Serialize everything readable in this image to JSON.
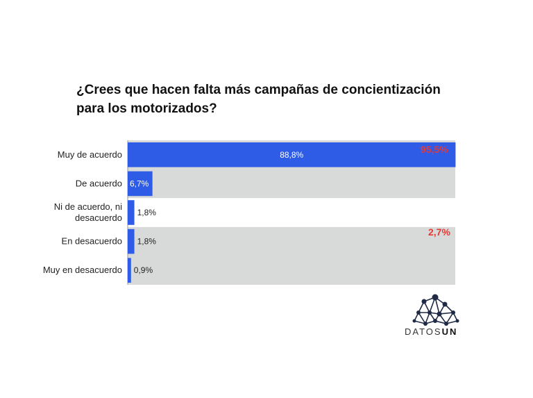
{
  "chart_data": {
    "type": "bar",
    "orientation": "horizontal",
    "title": "¿Crees que hacen falta más campañas de concientización para los motorizados?",
    "categories": [
      "Muy de acuerdo",
      "De acuerdo",
      "Ni de acuerdo, ni en desacuerdo",
      "En desacuerdo",
      "Muy en desacuerdo"
    ],
    "values": [
      88.8,
      6.7,
      1.8,
      1.8,
      0.9
    ],
    "value_labels": [
      "88,8%",
      "6,7%",
      "1,8%",
      "1,8%",
      "0,9%"
    ],
    "xlim": [
      0,
      100
    ],
    "bar_color": "#2f5ce6",
    "band_color": "#d8dad9",
    "group_totals": [
      {
        "label": "95,5%",
        "categories": [
          "Muy de acuerdo",
          "De acuerdo"
        ],
        "color": "#e53935"
      },
      {
        "label": "2,7%",
        "categories": [
          "En desacuerdo",
          "Muy en desacuerdo"
        ],
        "color": "#e53935"
      }
    ],
    "grid": false,
    "legend": "none"
  },
  "branding": {
    "logo_prefix": "DATOS",
    "logo_suffix": "UN"
  }
}
